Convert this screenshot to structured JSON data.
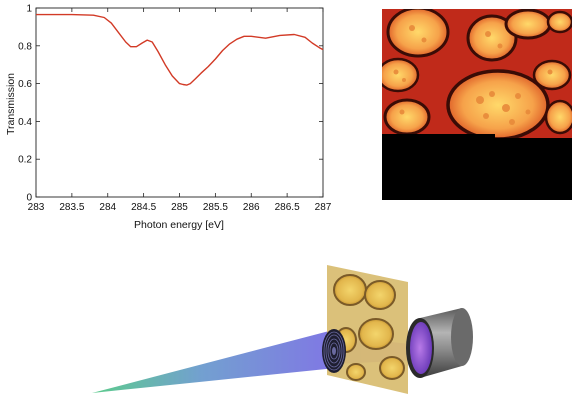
{
  "chart_data": {
    "type": "line",
    "xlabel": "Photon energy [eV]",
    "ylabel": "Transmission",
    "xlim": [
      283,
      287
    ],
    "ylim": [
      0,
      1
    ],
    "x_ticks": [
      "283",
      "283.5",
      "284",
      "284.5",
      "285",
      "285.5",
      "286",
      "286.5",
      "287"
    ],
    "y_ticks": [
      "0",
      "0.2",
      "0.4",
      "0.6",
      "0.8",
      "1"
    ],
    "grid": false,
    "series": [
      {
        "color": "#d23a26",
        "x": [
          283.0,
          283.5,
          283.8,
          283.95,
          284.05,
          284.15,
          284.25,
          284.32,
          284.4,
          284.48,
          284.55,
          284.62,
          284.7,
          284.8,
          284.9,
          285.0,
          285.05,
          285.1,
          285.15,
          285.22,
          285.3,
          285.4,
          285.5,
          285.6,
          285.7,
          285.8,
          285.9,
          286.0,
          286.2,
          286.4,
          286.6,
          286.75,
          286.85,
          286.95,
          287.0
        ],
        "y": [
          0.965,
          0.965,
          0.962,
          0.95,
          0.92,
          0.87,
          0.82,
          0.795,
          0.795,
          0.815,
          0.83,
          0.82,
          0.77,
          0.7,
          0.64,
          0.6,
          0.595,
          0.592,
          0.6,
          0.625,
          0.655,
          0.69,
          0.73,
          0.775,
          0.81,
          0.835,
          0.85,
          0.85,
          0.84,
          0.855,
          0.86,
          0.845,
          0.815,
          0.79,
          0.78
        ]
      }
    ]
  },
  "palette": {
    "micrograph_background": "#c02a1a",
    "micrograph_cells": "#f6a24a",
    "apparatus_cone": "#6a74d8",
    "apparatus_lens": "#23233a",
    "apparatus_sample": "#d6b868",
    "apparatus_detector": "#7a7a7a"
  }
}
